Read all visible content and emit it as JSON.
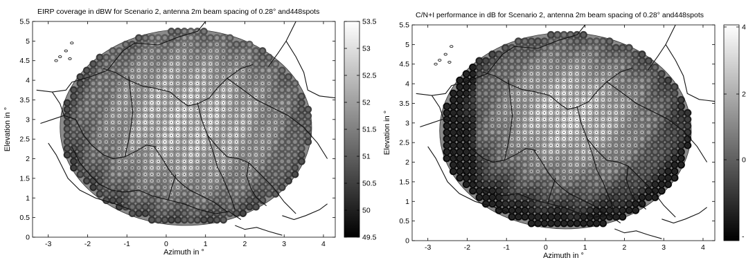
{
  "chart_data": [
    {
      "type": "heatmap",
      "title": "EIRP coverage in dBW for Scenario 2, antenna 2m beam spacing of 0.28° and448spots",
      "xlabel": "Azimuth in °",
      "ylabel": "Elevation in °",
      "xlim": [
        -3.4,
        4.3
      ],
      "ylim": [
        0,
        5.5
      ],
      "xticks": [
        "-3",
        "-2",
        "-1",
        "0",
        "1",
        "2",
        "3",
        "4"
      ],
      "yticks": [
        "0",
        "0.5",
        "1",
        "1.5",
        "2",
        "2.5",
        "3",
        "3.5",
        "4",
        "4.5",
        "5",
        "5.5"
      ],
      "colorbar": {
        "range": [
          49.5,
          53.5
        ],
        "ticks": [
          "49.5",
          "50",
          "50.5",
          "51",
          "51.5",
          "52",
          "52.5",
          "53",
          "53.5"
        ]
      },
      "coverage_ellipse": {
        "center": [
          0.5,
          2.8
        ],
        "semi_axes": [
          3.2,
          2.5
        ]
      },
      "peak_point": [
        0.6,
        3.0
      ],
      "colormap": "gray",
      "spots": 448,
      "beam_spacing_deg": 0.28
    },
    {
      "type": "heatmap",
      "title": "C/N+I performance in dB for Scenario 2, antenna 2m beam spacing of 0.28° and448spots",
      "xlabel": "Azimuth in °",
      "ylabel": "Elevation in °",
      "xlim": [
        -3.4,
        4.3
      ],
      "ylim": [
        0,
        5.5
      ],
      "xticks": [
        "-3",
        "-2",
        "-1",
        "0",
        "1",
        "2",
        "3",
        "4"
      ],
      "yticks": [
        "0",
        "0.5",
        "1",
        "1.5",
        "2",
        "2.5",
        "3",
        "3.5",
        "4",
        "4.5",
        "5",
        "5.5"
      ],
      "colorbar": {
        "range": [
          -2,
          4
        ],
        "ticks": [
          "4",
          "2",
          "0",
          "-"
        ]
      },
      "coverage_ellipse": {
        "center": [
          0.5,
          2.8
        ],
        "semi_axes": [
          3.2,
          2.5
        ]
      },
      "peak_point": [
        0.6,
        3.2
      ],
      "colormap": "gray",
      "spots": 448,
      "beam_spacing_deg": 0.28
    }
  ]
}
